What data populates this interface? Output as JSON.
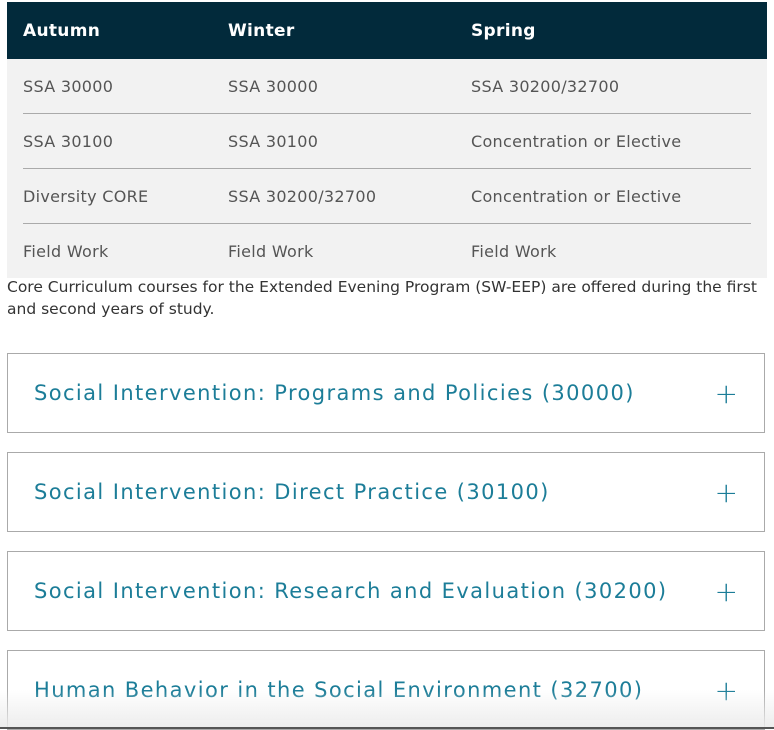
{
  "table": {
    "headers": [
      "Autumn",
      "Winter",
      "Spring"
    ],
    "rows": [
      [
        "SSA 30000",
        "SSA 30000",
        "SSA 30200/32700"
      ],
      [
        "SSA 30100",
        "SSA 30100",
        "Concentration or Elective"
      ],
      [
        "Diversity CORE",
        "SSA 30200/32700",
        "Concentration or Elective"
      ],
      [
        "Field Work",
        "Field Work",
        "Field Work"
      ]
    ]
  },
  "note": "Core Curriculum courses for the Extended Evening Program (SW-EEP) are offered during the first and second years of study.",
  "accordions": [
    {
      "title": "Social Intervention: Programs and Policies (30000)",
      "icon": "+"
    },
    {
      "title": "Social Intervention: Direct Practice (30100)",
      "icon": "+"
    },
    {
      "title": "Social Intervention: Research and Evaluation (30200)",
      "icon": "+"
    },
    {
      "title": "Human Behavior in the Social Environment (32700)",
      "icon": "+"
    }
  ],
  "colors": {
    "header_bg": "#022a3b",
    "accent": "#1c7d98",
    "row_bg": "#f2f2f2"
  }
}
